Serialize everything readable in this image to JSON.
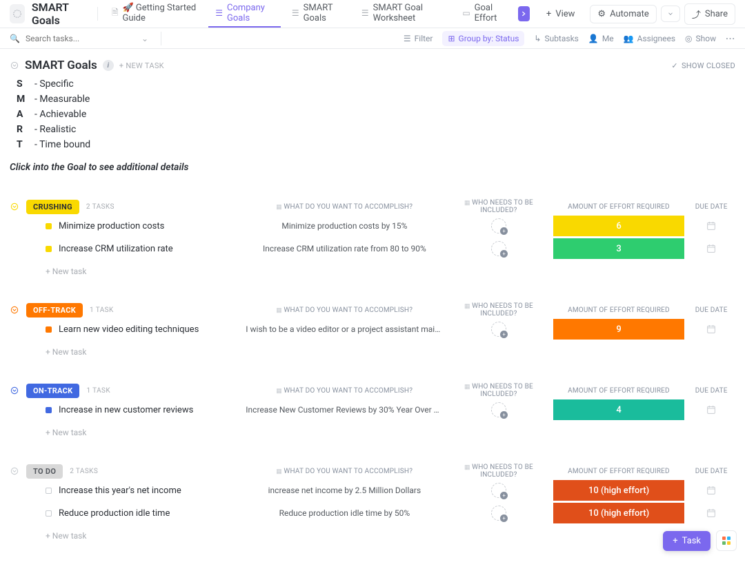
{
  "header": {
    "title": "SMART Goals",
    "tabs": [
      {
        "label": "🚀 Getting Started Guide"
      },
      {
        "label": "Company Goals"
      },
      {
        "label": "SMART Goals"
      },
      {
        "label": "SMART Goal Worksheet"
      },
      {
        "label": "Goal Effort"
      }
    ],
    "view": "View",
    "automate": "Automate",
    "share": "Share"
  },
  "toolbar": {
    "search_placeholder": "Search tasks...",
    "filter": "Filter",
    "group_by": "Group by: Status",
    "subtasks": "Subtasks",
    "me": "Me",
    "assignees": "Assignees",
    "show": "Show"
  },
  "page": {
    "title": "SMART Goals",
    "new_task": "+ NEW TASK",
    "show_closed": "SHOW CLOSED",
    "hint": "Click into the Goal to see additional details",
    "smart": [
      {
        "k": "S",
        "v": "- Specific"
      },
      {
        "k": "M",
        "v": "- Measurable"
      },
      {
        "k": "A",
        "v": "- Achievable"
      },
      {
        "k": "R",
        "v": "- Realistic"
      },
      {
        "k": "T",
        "v": "- Time bound"
      }
    ]
  },
  "columns": {
    "accomplish": "WHAT DO YOU WANT TO ACCOMPLISH?",
    "who": "WHO NEEDS TO BE INCLUDED?",
    "effort": "AMOUNT OF EFFORT REQUIRED",
    "due": "DUE DATE"
  },
  "new_task_row": "+ New task",
  "groups": [
    {
      "status": "CRUSHING",
      "status_color": "#f9d900",
      "status_text": "#2a2e34",
      "chev_color": "#f9d900",
      "count": "2 TASKS",
      "task_sq": "#f9d900",
      "tasks": [
        {
          "name": "Minimize production costs",
          "accomplish": "Minimize production costs by 15%",
          "effort": "6",
          "effort_bg": "#f9d900"
        },
        {
          "name": "Increase CRM utilization rate",
          "accomplish": "Increase CRM utilization rate from 80 to 90%",
          "effort": "3",
          "effort_bg": "#2ecd6f"
        }
      ]
    },
    {
      "status": "OFF-TRACK",
      "status_color": "#ff7800",
      "status_text": "#ffffff",
      "chev_color": "#ff7800",
      "count": "1 TASK",
      "task_sq": "#ff7800",
      "tasks": [
        {
          "name": "Learn new video editing techniques",
          "accomplish": "I wish to be a video editor or a project assistant mainly ...",
          "effort": "9",
          "effort_bg": "#ff7800"
        }
      ]
    },
    {
      "status": "ON-TRACK",
      "status_color": "#4169e1",
      "status_text": "#ffffff",
      "chev_color": "#4169e1",
      "count": "1 TASK",
      "task_sq": "#4169e1",
      "tasks": [
        {
          "name": "Increase in new customer reviews",
          "accomplish": "Increase New Customer Reviews by 30% Year Over Year...",
          "effort": "4",
          "effort_bg": "#1abc9c"
        }
      ]
    },
    {
      "status": "TO DO",
      "status_color": "#d8d8d8",
      "status_text": "#55595f",
      "chev_color": "#c8ccd1",
      "count": "2 TASKS",
      "task_sq_border": "#c8ccd1",
      "tasks": [
        {
          "name": "Increase this year's net income",
          "accomplish": "increase net income by 2.5 Million Dollars",
          "effort": "10 (high effort)",
          "effort_bg": "#e04f1a"
        },
        {
          "name": "Reduce production idle time",
          "accomplish": "Reduce production idle time by 50%",
          "effort": "10 (high effort)",
          "effort_bg": "#e04f1a"
        }
      ]
    }
  ],
  "fab": {
    "label": "Task"
  }
}
